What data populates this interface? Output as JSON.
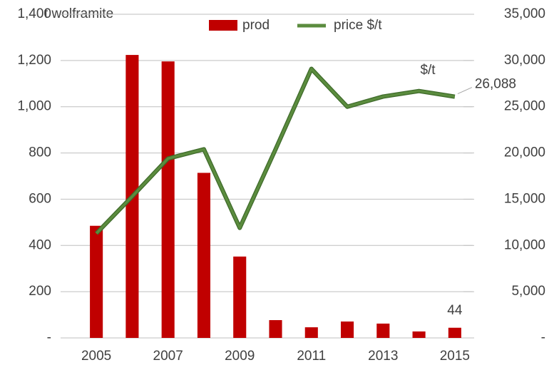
{
  "chart_data": {
    "type": "bar_line",
    "ylabel": "t wolframite",
    "y2label": "$/t",
    "categories": [
      "2005",
      null,
      "2007",
      null,
      "2009",
      null,
      "2011",
      null,
      "2013",
      null,
      "2015"
    ],
    "series": [
      {
        "name": "prod",
        "color": "#c00000",
        "type": "bar",
        "values": [
          485,
          1224,
          1196,
          714,
          352,
          77,
          46,
          71,
          62,
          28,
          44
        ]
      },
      {
        "name": "price $/t",
        "color": "#5b8c3e",
        "type": "line",
        "axis": "y2",
        "values": [
          11300,
          15300,
          19400,
          20400,
          11900,
          20400,
          29100,
          25000,
          26100,
          26700,
          26088
        ],
        "value_labels": [
          null,
          null,
          null,
          null,
          null,
          null,
          null,
          null,
          null,
          null,
          "26,088"
        ]
      }
    ],
    "ylim": [
      0,
      1400
    ],
    "yticks": [
      {
        "value": 0,
        "label": "-"
      },
      200,
      400,
      600,
      800,
      {
        "value": 1000,
        "label": "1,000"
      },
      {
        "value": 1200,
        "label": "1,200"
      },
      {
        "value": 1400,
        "label": "1,400"
      }
    ],
    "y2lim": [
      0,
      35000
    ],
    "y2ticks": [
      {
        "value": 0,
        "label": "-"
      },
      {
        "value": 5000,
        "label": "5,000"
      },
      {
        "value": 10000,
        "label": "10,000"
      },
      {
        "value": 15000,
        "label": "15,000"
      },
      {
        "value": 20000,
        "label": "20,000"
      },
      {
        "value": 25000,
        "label": "25,000"
      },
      {
        "value": 30000,
        "label": "30,000"
      },
      {
        "value": 35000,
        "label": "35,000"
      }
    ],
    "grid": true,
    "legend": "top"
  }
}
